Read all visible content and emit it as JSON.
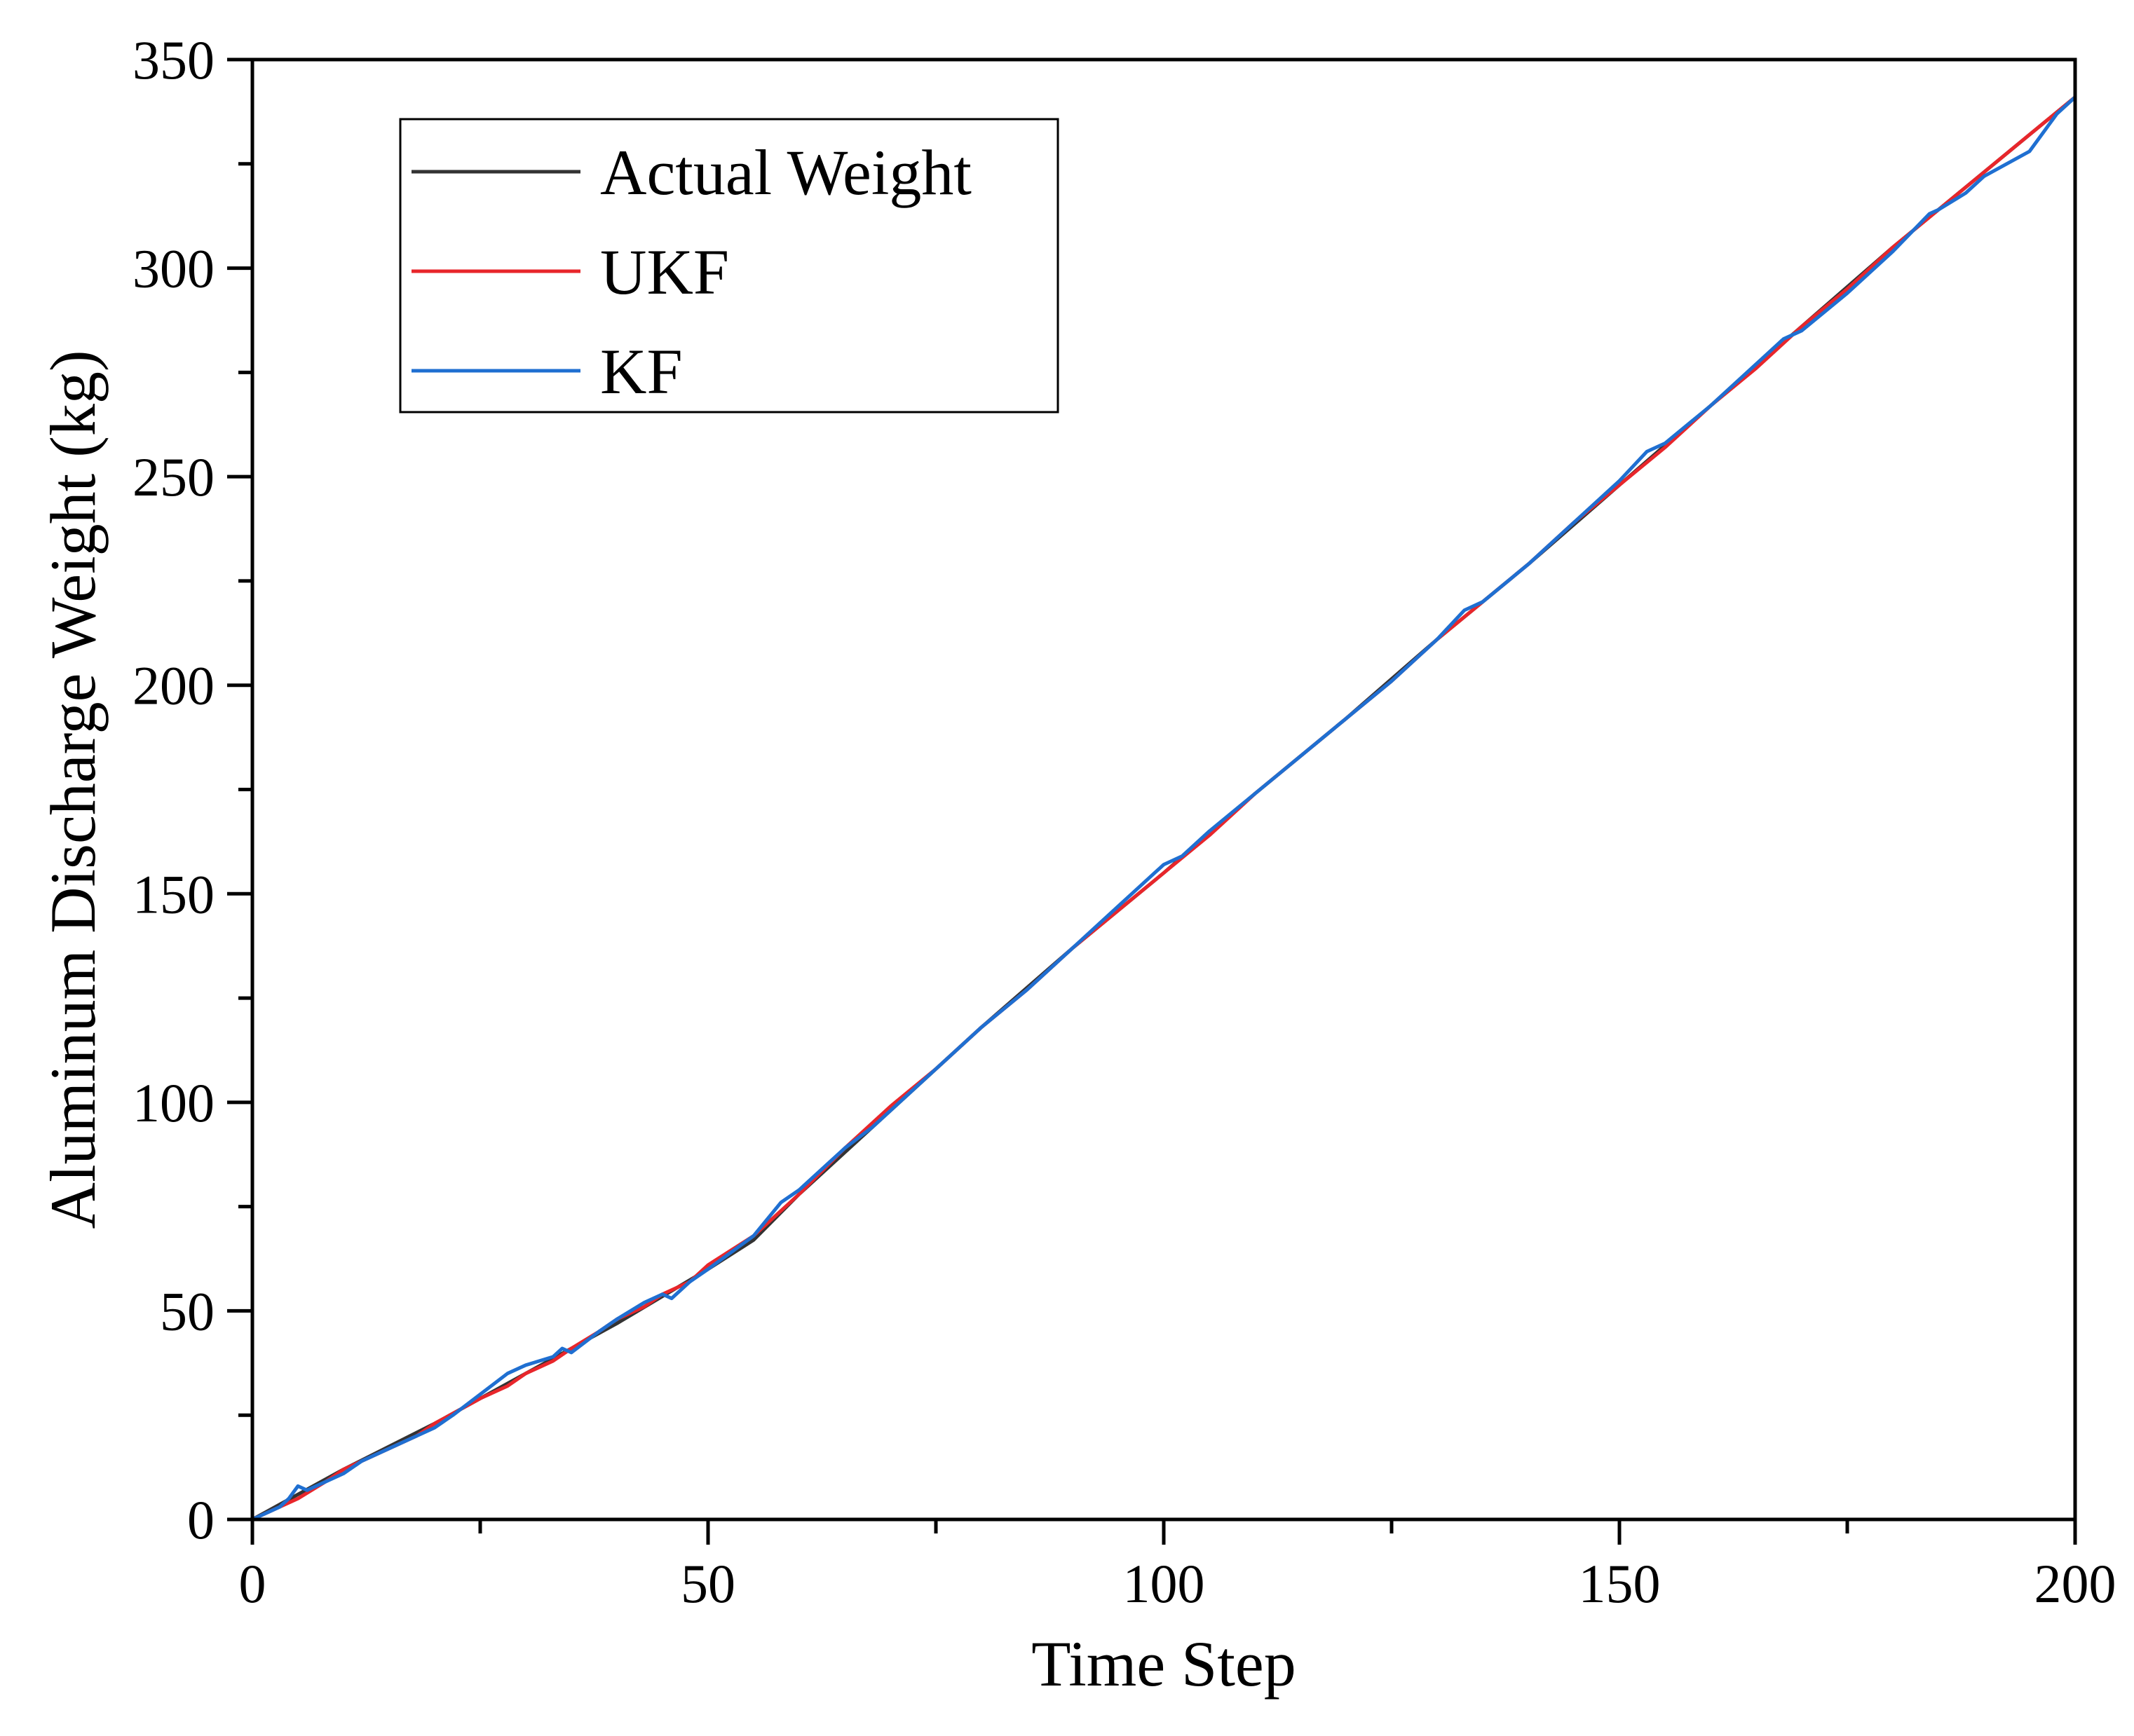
{
  "chart_data": {
    "type": "line",
    "title": "",
    "xlabel": "Time Step",
    "ylabel": "Aluminum Discharge Weight (kg)",
    "xlim": [
      0,
      200
    ],
    "ylim": [
      0,
      350
    ],
    "x_ticks": [
      0,
      50,
      100,
      150,
      200
    ],
    "x_minor_ticks": [
      25,
      75,
      125,
      175
    ],
    "y_ticks": [
      0,
      50,
      100,
      150,
      200,
      250,
      300,
      350
    ],
    "grid": false,
    "legend_position": "top-left",
    "series": [
      {
        "name": "Actual Weight",
        "color": "#333333",
        "x": [
          0,
          10,
          20,
          30,
          40,
          50,
          55,
          60,
          70,
          80,
          90,
          100,
          110,
          120,
          130,
          140,
          150,
          160,
          170,
          180,
          190,
          200
        ],
        "y": [
          0,
          12,
          23,
          35,
          47,
          60,
          67,
          78,
          98,
          118,
          137,
          155,
          174,
          192,
          211,
          229,
          248,
          267,
          286,
          305,
          323,
          341
        ]
      },
      {
        "name": "UKF",
        "color": "#e8262b",
        "x": [
          0,
          3,
          5,
          8,
          10,
          12,
          15,
          18,
          20,
          25,
          28,
          30,
          33,
          35,
          38,
          40,
          43,
          45,
          48,
          50,
          55,
          60,
          65,
          70,
          75,
          80,
          85,
          90,
          95,
          100,
          105,
          110,
          115,
          120,
          125,
          130,
          135,
          140,
          145,
          150,
          155,
          160,
          165,
          170,
          175,
          180,
          185,
          190,
          195,
          200
        ],
        "y": [
          0,
          3,
          5,
          9,
          12,
          14,
          17,
          20,
          23,
          29,
          32,
          35,
          38,
          41,
          45,
          48,
          51,
          54,
          57,
          61,
          68,
          78,
          89,
          99,
          108,
          118,
          127,
          137,
          146,
          155,
          164,
          174,
          183,
          192,
          201,
          211,
          220,
          229,
          239,
          248,
          257,
          267,
          276,
          286,
          295,
          305,
          314,
          323,
          332,
          341
        ]
      },
      {
        "name": "KF",
        "color": "#1f6fd1",
        "x": [
          0,
          2,
          3,
          4,
          5,
          6,
          8,
          10,
          12,
          15,
          18,
          20,
          22,
          25,
          28,
          30,
          33,
          34,
          35,
          38,
          40,
          43,
          45,
          46,
          48,
          50,
          55,
          58,
          60,
          63,
          65,
          68,
          70,
          75,
          80,
          85,
          90,
          95,
          100,
          102,
          105,
          110,
          115,
          120,
          125,
          130,
          133,
          135,
          140,
          145,
          150,
          153,
          155,
          160,
          165,
          168,
          170,
          175,
          180,
          184,
          185,
          188,
          190,
          195,
          197,
          198,
          200
        ],
        "y": [
          0,
          2,
          3,
          5,
          8,
          7,
          9,
          11,
          14,
          17,
          20,
          22,
          25,
          30,
          35,
          37,
          39,
          41,
          40,
          45,
          48,
          52,
          54,
          53,
          57,
          60,
          68,
          76,
          79,
          85,
          89,
          94,
          98,
          108,
          118,
          127,
          137,
          147,
          157,
          159,
          165,
          174,
          183,
          192,
          201,
          211,
          218,
          220,
          229,
          239,
          249,
          256,
          258,
          267,
          277,
          283,
          285,
          294,
          304,
          313,
          314,
          318,
          322,
          328,
          334,
          337,
          341
        ]
      }
    ]
  }
}
